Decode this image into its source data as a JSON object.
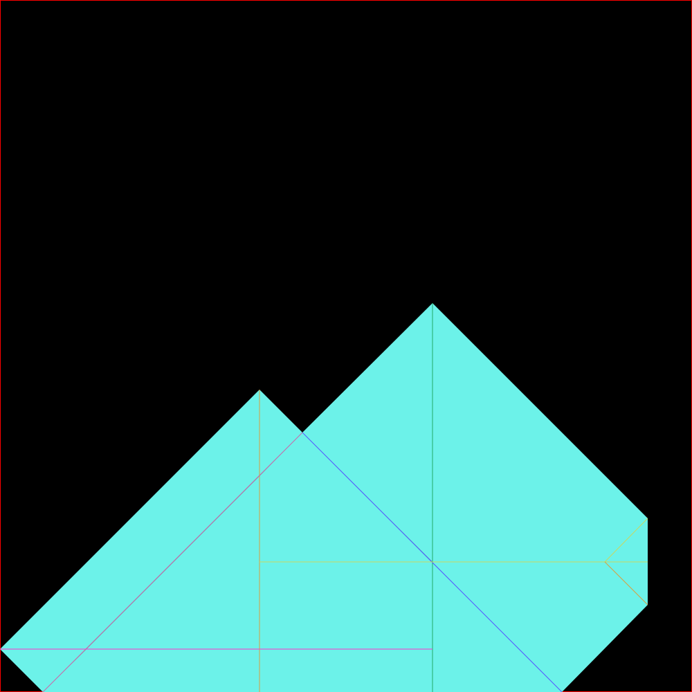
{
  "scene": {
    "background_color": "#000000",
    "border_color": "#ff0000",
    "fill_color": "#6cf2e9"
  },
  "pieces": [
    {
      "name": "large-right-triangle",
      "color": "#6cf2e9"
    },
    {
      "name": "left-triangle",
      "color": "#6cf2e9"
    },
    {
      "name": "front-triangle",
      "color": "#6cf2e9"
    },
    {
      "name": "lower-right-parallelogram",
      "color": "#6cf2e9"
    },
    {
      "name": "small-right-triangle",
      "color": "#6cf2e9"
    },
    {
      "name": "bottom-left-strip",
      "color": "#6cf2e9"
    },
    {
      "name": "middle-square",
      "color": "#6cf2e9"
    }
  ],
  "edges": {
    "orange": "#d8a040",
    "green": "#22aa66",
    "blue": "#5555ff",
    "magenta": "#ff33cc",
    "olive": "#c8d860",
    "pink": "#cc66aa"
  }
}
